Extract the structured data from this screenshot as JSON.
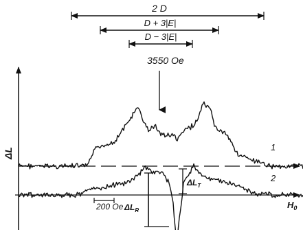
{
  "chart_data": {
    "type": "line",
    "xlabel": "H",
    "xlabel_sub": "0",
    "ylabel": "ΔL",
    "center_field_label": "3550 Oe",
    "scale_bar_label": "200 Oe",
    "splitting_labels": [
      "2 D",
      "D + 3|E|",
      "D − 3|E|"
    ],
    "amplitude_labels": {
      "resonant": "ΔL",
      "resonant_sub": "R",
      "thermal": "ΔL",
      "thermal_sub": "T"
    },
    "series": [
      {
        "name": "1",
        "baseline": 0,
        "x": [
          0,
          50,
          80,
          100,
          110,
          125,
          140,
          150,
          160,
          170,
          175,
          180,
          190,
          200,
          205,
          215,
          225,
          230,
          235,
          240,
          250,
          260,
          265,
          270,
          280,
          285,
          290,
          300,
          310,
          320,
          330,
          340,
          350,
          360,
          370,
          380,
          390,
          400,
          430
        ],
        "y": [
          0,
          0,
          0,
          0,
          0.55,
          0.75,
          0.85,
          1.2,
          1.55,
          1.9,
          2.05,
          1.6,
          1.25,
          1.4,
          1.15,
          1.05,
          1.1,
          0.9,
          1.05,
          1.2,
          1.35,
          1.55,
          1.95,
          2.15,
          1.9,
          1.45,
          1.25,
          1.15,
          0.8,
          0.4,
          0.3,
          0.2,
          0.1,
          0.05,
          0,
          0,
          0,
          0,
          0
        ]
      },
      {
        "name": "2",
        "baseline": 0,
        "x": [
          0,
          40,
          70,
          90,
          100,
          110,
          130,
          150,
          160,
          170,
          185,
          190,
          200,
          210,
          215,
          220,
          225,
          230,
          235,
          240,
          245,
          250,
          255,
          260,
          270,
          280,
          285,
          290,
          300,
          310,
          320,
          330,
          340,
          350,
          360,
          370,
          380,
          400,
          430
        ],
        "y": [
          0,
          0,
          0,
          0,
          0.15,
          0.2,
          0.3,
          0.4,
          0.45,
          0.65,
          0.95,
          0.85,
          0.8,
          0.75,
          0.55,
          0.4,
          -0.3,
          -1.7,
          -0.6,
          0.35,
          0.7,
          0.8,
          1.0,
          0.8,
          0.65,
          0.5,
          0.6,
          0.5,
          0.45,
          0.4,
          0.35,
          0.2,
          0.1,
          0.05,
          0.05,
          0,
          0,
          0,
          0
        ]
      }
    ],
    "grid": false,
    "legend": "inline-right"
  }
}
